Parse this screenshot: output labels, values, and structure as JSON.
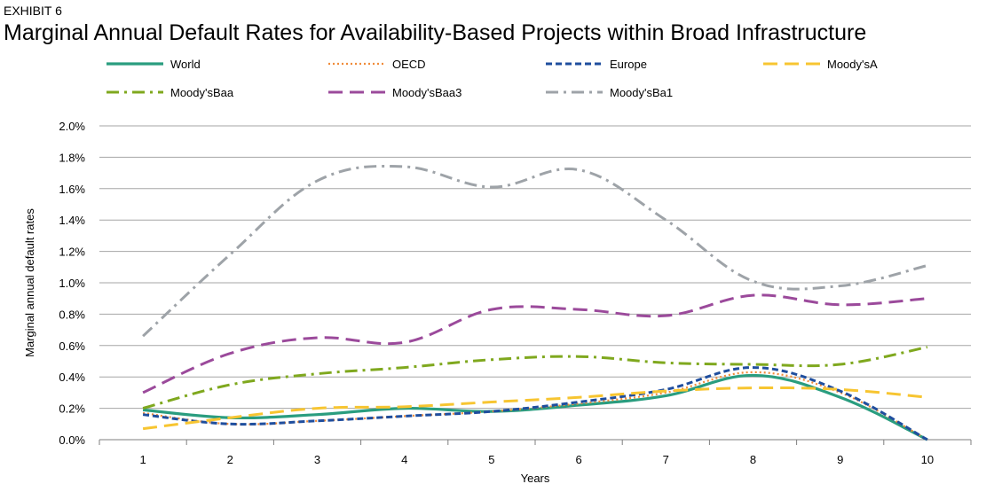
{
  "header": {
    "exhibit_label": "EXHIBIT 6"
  },
  "chart_data": {
    "type": "line",
    "title": "Marginal Annual Default Rates for Availability-Based Projects within Broad Infrastructure",
    "xlabel": "Years",
    "ylabel": "Marginal annual default rates",
    "categories": [
      "1",
      "2",
      "3",
      "4",
      "5",
      "6",
      "7",
      "8",
      "9",
      "10"
    ],
    "ylim": [
      0,
      0.02
    ],
    "yticks": [
      "0.0%",
      "0.2%",
      "0.4%",
      "0.6%",
      "0.8%",
      "1.0%",
      "1.2%",
      "1.4%",
      "1.6%",
      "1.8%",
      "2.0%"
    ],
    "grid": "horizontal",
    "legend_position": "top",
    "series": [
      {
        "name": "World",
        "color": "#2a9d7f",
        "dash": "solid",
        "values": [
          0.0019,
          0.0014,
          0.0016,
          0.002,
          0.0018,
          0.0022,
          0.0028,
          0.0041,
          0.0027,
          0.0
        ]
      },
      {
        "name": "OECD",
        "color": "#f08c3a",
        "dash": "dot",
        "values": [
          0.0017,
          0.001,
          0.0012,
          0.0015,
          0.0018,
          0.0023,
          0.003,
          0.0043,
          0.003,
          0.0
        ]
      },
      {
        "name": "Europe",
        "color": "#1f4e9e",
        "dash": "dash",
        "values": [
          0.0016,
          0.001,
          0.0012,
          0.0015,
          0.0018,
          0.0024,
          0.0032,
          0.0046,
          0.0031,
          0.0
        ]
      },
      {
        "name": "Moody'sA",
        "color": "#f7c531",
        "dash": "longdash",
        "values": [
          0.0007,
          0.0014,
          0.002,
          0.0021,
          0.0024,
          0.0027,
          0.0031,
          0.0033,
          0.0032,
          0.0027
        ]
      },
      {
        "name": "Moody'sBaa",
        "color": "#7fa81e",
        "dash": "dashdot",
        "values": [
          0.002,
          0.0035,
          0.0042,
          0.0046,
          0.0051,
          0.0053,
          0.0049,
          0.0048,
          0.0048,
          0.0059
        ]
      },
      {
        "name": "Moody'sBaa3",
        "color": "#9b4a9b",
        "dash": "longdash",
        "values": [
          0.003,
          0.0055,
          0.0065,
          0.0062,
          0.0083,
          0.0083,
          0.0079,
          0.0092,
          0.0086,
          0.009
        ]
      },
      {
        "name": "Moody'sBa1",
        "color": "#9ea3a8",
        "dash": "dashdot",
        "values": [
          0.0066,
          0.0118,
          0.0165,
          0.0174,
          0.0161,
          0.0172,
          0.014,
          0.0101,
          0.0098,
          0.0111
        ]
      }
    ]
  }
}
